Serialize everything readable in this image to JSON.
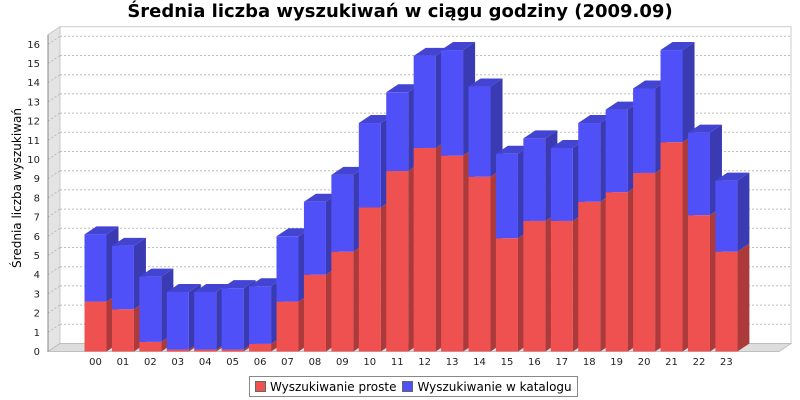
{
  "chart_data": {
    "type": "bar",
    "stacked": true,
    "three_d": true,
    "title": "Średnia liczba wyszukiwań w ciągu godziny (2009.09)",
    "ylabel": "Średnia liczba wyszukiwań",
    "xlabel": "",
    "ylim": [
      0,
      16.5
    ],
    "yticks": [
      0,
      1,
      2,
      3,
      4,
      5,
      6,
      7,
      8,
      9,
      10,
      11,
      12,
      13,
      14,
      15,
      16
    ],
    "grid": true,
    "legend_position": "bottom",
    "categories": [
      "00",
      "01",
      "02",
      "03",
      "04",
      "05",
      "06",
      "07",
      "08",
      "09",
      "10",
      "11",
      "12",
      "13",
      "14",
      "15",
      "16",
      "17",
      "18",
      "19",
      "20",
      "21",
      "22",
      "23"
    ],
    "series": [
      {
        "name": "Wyszukiwanie proste",
        "color": "#ef5050",
        "values": [
          2.6,
          2.2,
          0.5,
          0.1,
          0.1,
          0.1,
          0.4,
          2.6,
          4.0,
          5.2,
          7.5,
          9.4,
          10.6,
          10.2,
          9.1,
          5.9,
          6.8,
          6.8,
          7.8,
          8.3,
          9.3,
          10.9,
          7.1,
          5.2
        ]
      },
      {
        "name": "Wyszukiwanie w katalogu",
        "color": "#5050f8",
        "values": [
          3.5,
          3.3,
          3.4,
          3.0,
          3.0,
          3.2,
          3.0,
          3.4,
          3.8,
          4.0,
          4.4,
          4.1,
          4.8,
          5.5,
          4.7,
          4.4,
          4.3,
          3.8,
          4.1,
          4.3,
          4.4,
          4.8,
          4.3,
          3.7
        ]
      }
    ]
  }
}
